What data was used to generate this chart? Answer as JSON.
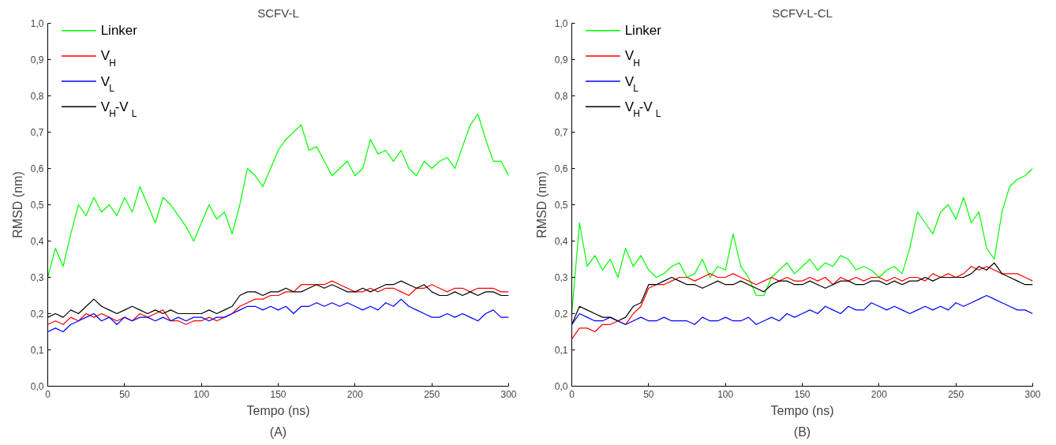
{
  "chart_data": [
    {
      "type": "line",
      "title": "SCFV-L",
      "xlabel": "Tempo (ns)",
      "ylabel": "RMSD (nm)",
      "annotations": [
        "(A)"
      ],
      "x": [
        0,
        5,
        10,
        15,
        20,
        25,
        30,
        35,
        40,
        45,
        50,
        55,
        60,
        65,
        70,
        75,
        80,
        85,
        90,
        95,
        100,
        105,
        110,
        115,
        120,
        125,
        130,
        135,
        140,
        145,
        150,
        155,
        160,
        165,
        170,
        175,
        180,
        185,
        190,
        195,
        200,
        205,
        210,
        215,
        220,
        225,
        230,
        235,
        240,
        245,
        250,
        255,
        260,
        265,
        270,
        275,
        280,
        285,
        290,
        295,
        300
      ],
      "series": [
        {
          "name": "Linker",
          "color": "#00ff00",
          "values": [
            0.3,
            0.38,
            0.33,
            0.42,
            0.5,
            0.47,
            0.52,
            0.48,
            0.5,
            0.47,
            0.52,
            0.48,
            0.55,
            0.5,
            0.45,
            0.52,
            0.5,
            0.47,
            0.44,
            0.4,
            0.45,
            0.5,
            0.46,
            0.48,
            0.42,
            0.5,
            0.6,
            0.58,
            0.55,
            0.6,
            0.65,
            0.68,
            0.7,
            0.72,
            0.65,
            0.66,
            0.62,
            0.58,
            0.6,
            0.62,
            0.58,
            0.6,
            0.68,
            0.64,
            0.65,
            0.62,
            0.65,
            0.6,
            0.58,
            0.62,
            0.6,
            0.62,
            0.63,
            0.6,
            0.66,
            0.72,
            0.75,
            0.68,
            0.62,
            0.62,
            0.58
          ]
        },
        {
          "name": "V$_{H}$",
          "color": "#ff0000",
          "values": [
            0.17,
            0.18,
            0.17,
            0.19,
            0.18,
            0.2,
            0.19,
            0.2,
            0.19,
            0.18,
            0.19,
            0.18,
            0.2,
            0.19,
            0.2,
            0.21,
            0.18,
            0.18,
            0.17,
            0.18,
            0.18,
            0.19,
            0.18,
            0.19,
            0.2,
            0.22,
            0.23,
            0.24,
            0.24,
            0.25,
            0.25,
            0.26,
            0.26,
            0.28,
            0.28,
            0.28,
            0.28,
            0.29,
            0.28,
            0.27,
            0.26,
            0.26,
            0.27,
            0.26,
            0.27,
            0.27,
            0.26,
            0.25,
            0.27,
            0.27,
            0.28,
            0.27,
            0.26,
            0.27,
            0.27,
            0.26,
            0.27,
            0.27,
            0.27,
            0.26,
            0.26
          ]
        },
        {
          "name": "V$_{L}$",
          "color": "#0000ff",
          "values": [
            0.15,
            0.16,
            0.15,
            0.17,
            0.18,
            0.19,
            0.2,
            0.18,
            0.19,
            0.17,
            0.19,
            0.18,
            0.19,
            0.19,
            0.18,
            0.19,
            0.18,
            0.19,
            0.18,
            0.19,
            0.19,
            0.18,
            0.19,
            0.19,
            0.2,
            0.21,
            0.22,
            0.22,
            0.21,
            0.22,
            0.21,
            0.22,
            0.2,
            0.22,
            0.22,
            0.23,
            0.22,
            0.23,
            0.22,
            0.23,
            0.22,
            0.21,
            0.22,
            0.21,
            0.23,
            0.22,
            0.24,
            0.22,
            0.21,
            0.2,
            0.19,
            0.19,
            0.2,
            0.19,
            0.2,
            0.19,
            0.18,
            0.2,
            0.21,
            0.19,
            0.19
          ]
        },
        {
          "name": "V$_{H}$-V$_{L}$",
          "color": "#000000",
          "values": [
            0.19,
            0.2,
            0.19,
            0.21,
            0.2,
            0.22,
            0.24,
            0.22,
            0.21,
            0.2,
            0.21,
            0.22,
            0.21,
            0.2,
            0.21,
            0.2,
            0.21,
            0.2,
            0.2,
            0.2,
            0.2,
            0.21,
            0.2,
            0.21,
            0.22,
            0.25,
            0.26,
            0.26,
            0.25,
            0.26,
            0.26,
            0.27,
            0.26,
            0.26,
            0.27,
            0.28,
            0.27,
            0.28,
            0.27,
            0.26,
            0.26,
            0.27,
            0.26,
            0.27,
            0.28,
            0.28,
            0.29,
            0.28,
            0.27,
            0.28,
            0.26,
            0.25,
            0.25,
            0.26,
            0.25,
            0.26,
            0.25,
            0.26,
            0.26,
            0.25,
            0.25
          ]
        }
      ],
      "xlim": [
        0,
        300
      ],
      "xticks": [
        0,
        50,
        100,
        150,
        200,
        250,
        300
      ],
      "ylim": [
        0,
        1
      ],
      "yticks": [
        {
          "value": 0,
          "label": "0,0"
        },
        {
          "value": 0.1,
          "label": "0,1"
        },
        {
          "value": 0.2,
          "label": "0,2"
        },
        {
          "value": 0.3,
          "label": "0,3"
        },
        {
          "value": 0.4,
          "label": "0,4"
        },
        {
          "value": 0.5,
          "label": "0,5"
        },
        {
          "value": 0.6,
          "label": "0,6"
        },
        {
          "value": 0.7,
          "label": "0,7"
        },
        {
          "value": 0.8,
          "label": "0,8"
        },
        {
          "value": 0.9,
          "label": "0,9"
        },
        {
          "value": 1,
          "label": "1,0"
        }
      ],
      "grid": false,
      "legend": "top left"
    },
    {
      "type": "line",
      "title": "SCFV-L-CL",
      "xlabel": "Tempo (ns)",
      "ylabel": "RMSD (nm)",
      "annotations": [
        "(B)"
      ],
      "x": [
        0,
        5,
        10,
        15,
        20,
        25,
        30,
        35,
        40,
        45,
        50,
        55,
        60,
        65,
        70,
        75,
        80,
        85,
        90,
        95,
        100,
        105,
        110,
        115,
        120,
        125,
        130,
        135,
        140,
        145,
        150,
        155,
        160,
        165,
        170,
        175,
        180,
        185,
        190,
        195,
        200,
        205,
        210,
        215,
        220,
        225,
        230,
        235,
        240,
        245,
        250,
        255,
        260,
        265,
        270,
        275,
        280,
        285,
        290,
        295,
        300
      ],
      "series": [
        {
          "name": "Linker",
          "color": "#00ff00",
          "values": [
            0.2,
            0.45,
            0.33,
            0.36,
            0.32,
            0.35,
            0.3,
            0.38,
            0.33,
            0.36,
            0.32,
            0.3,
            0.31,
            0.33,
            0.34,
            0.3,
            0.31,
            0.35,
            0.3,
            0.33,
            0.32,
            0.42,
            0.33,
            0.3,
            0.25,
            0.25,
            0.3,
            0.32,
            0.34,
            0.31,
            0.33,
            0.35,
            0.32,
            0.34,
            0.33,
            0.36,
            0.35,
            0.32,
            0.33,
            0.32,
            0.3,
            0.32,
            0.33,
            0.31,
            0.38,
            0.48,
            0.45,
            0.42,
            0.48,
            0.5,
            0.46,
            0.52,
            0.45,
            0.48,
            0.38,
            0.35,
            0.48,
            0.55,
            0.57,
            0.58,
            0.6
          ]
        },
        {
          "name": "V$_{H}$",
          "color": "#ff0000",
          "values": [
            0.13,
            0.16,
            0.16,
            0.15,
            0.17,
            0.17,
            0.18,
            0.17,
            0.2,
            0.22,
            0.27,
            0.28,
            0.28,
            0.29,
            0.3,
            0.3,
            0.29,
            0.3,
            0.31,
            0.3,
            0.3,
            0.31,
            0.3,
            0.29,
            0.28,
            0.29,
            0.3,
            0.29,
            0.3,
            0.29,
            0.29,
            0.3,
            0.29,
            0.3,
            0.28,
            0.3,
            0.29,
            0.3,
            0.29,
            0.3,
            0.3,
            0.29,
            0.3,
            0.29,
            0.3,
            0.3,
            0.29,
            0.31,
            0.3,
            0.31,
            0.3,
            0.31,
            0.33,
            0.32,
            0.33,
            0.32,
            0.31,
            0.31,
            0.31,
            0.3,
            0.29
          ]
        },
        {
          "name": "V$_{L}$",
          "color": "#0000ff",
          "values": [
            0.17,
            0.2,
            0.19,
            0.18,
            0.18,
            0.19,
            0.18,
            0.17,
            0.18,
            0.19,
            0.18,
            0.18,
            0.19,
            0.18,
            0.18,
            0.18,
            0.17,
            0.19,
            0.18,
            0.18,
            0.19,
            0.18,
            0.18,
            0.19,
            0.17,
            0.18,
            0.19,
            0.18,
            0.2,
            0.19,
            0.2,
            0.21,
            0.2,
            0.22,
            0.21,
            0.2,
            0.22,
            0.21,
            0.21,
            0.23,
            0.22,
            0.21,
            0.22,
            0.21,
            0.2,
            0.21,
            0.22,
            0.21,
            0.22,
            0.21,
            0.23,
            0.22,
            0.23,
            0.24,
            0.25,
            0.24,
            0.23,
            0.22,
            0.21,
            0.21,
            0.2
          ]
        },
        {
          "name": "V$_{H}$-V$_{L}$",
          "color": "#000000",
          "values": [
            0.17,
            0.22,
            0.21,
            0.2,
            0.19,
            0.19,
            0.18,
            0.19,
            0.22,
            0.23,
            0.28,
            0.28,
            0.29,
            0.3,
            0.29,
            0.28,
            0.28,
            0.27,
            0.28,
            0.29,
            0.28,
            0.28,
            0.29,
            0.28,
            0.27,
            0.26,
            0.28,
            0.29,
            0.29,
            0.28,
            0.28,
            0.29,
            0.28,
            0.27,
            0.28,
            0.29,
            0.29,
            0.28,
            0.28,
            0.29,
            0.29,
            0.28,
            0.29,
            0.28,
            0.29,
            0.29,
            0.3,
            0.29,
            0.3,
            0.3,
            0.3,
            0.3,
            0.31,
            0.33,
            0.32,
            0.34,
            0.31,
            0.3,
            0.29,
            0.28,
            0.28
          ]
        }
      ],
      "xlim": [
        0,
        300
      ],
      "xticks": [
        0,
        50,
        100,
        150,
        200,
        250,
        300
      ],
      "ylim": [
        0,
        1
      ],
      "yticks": [
        {
          "value": 0,
          "label": "0,0"
        },
        {
          "value": 0.1,
          "label": "0,1"
        },
        {
          "value": 0.2,
          "label": "0,2"
        },
        {
          "value": 0.3,
          "label": "0,3"
        },
        {
          "value": 0.4,
          "label": "0,4"
        },
        {
          "value": 0.5,
          "label": "0,5"
        },
        {
          "value": 0.6,
          "label": "0,6"
        },
        {
          "value": 0.7,
          "label": "0,7"
        },
        {
          "value": 0.8,
          "label": "0,8"
        },
        {
          "value": 0.9,
          "label": "0,9"
        },
        {
          "value": 1,
          "label": "1,0"
        }
      ],
      "grid": false,
      "legend": "top left"
    }
  ]
}
